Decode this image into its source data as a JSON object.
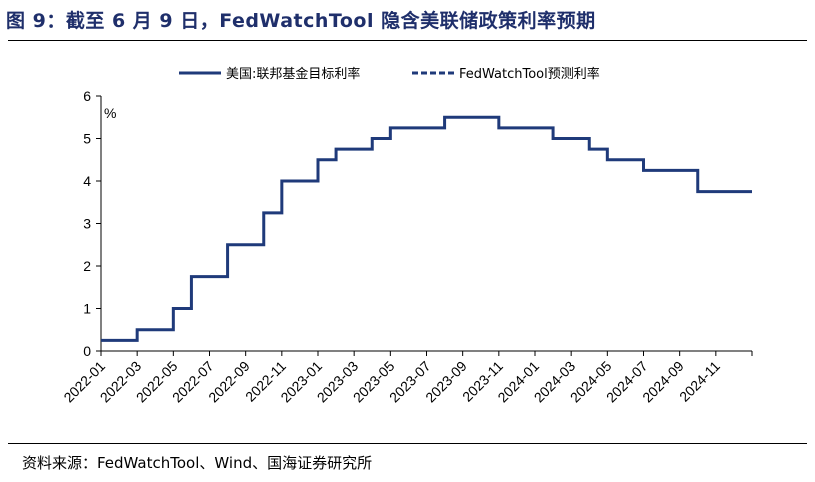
{
  "header": {
    "title": "图 9：截至 6 月 9 日，FedWatchTool 隐含美联储政策利率预期"
  },
  "footer": {
    "source": "资料来源：FedWatchTool、Wind、国海证券研究所"
  },
  "colors": {
    "title": "#1f2f6b",
    "series": "#1f3a7a",
    "axis": "#000000"
  },
  "chart_data": {
    "type": "line",
    "ylabel": "%",
    "ylim": [
      0,
      6
    ],
    "yticks": [
      0,
      1,
      2,
      3,
      4,
      5,
      6
    ],
    "xlim": [
      "2022-01",
      "2024-12"
    ],
    "xticks": [
      "2022-01",
      "2022-03",
      "2022-05",
      "2022-07",
      "2022-09",
      "2022-11",
      "2023-01",
      "2023-03",
      "2023-05",
      "2023-07",
      "2023-09",
      "2023-11",
      "2024-01",
      "2024-03",
      "2024-05",
      "2024-07",
      "2024-09",
      "2024-11"
    ],
    "grid": false,
    "legend_position": "top-center",
    "series": [
      {
        "name": "美国:联邦基金目标利率",
        "style": "solid",
        "step": true,
        "x": [
          "2022-01",
          "2022-03",
          "2022-05",
          "2022-06",
          "2022-08",
          "2022-10",
          "2022-11",
          "2023-01",
          "2023-02",
          "2023-04",
          "2023-05",
          "2023-08",
          "2023-11",
          "2024-02",
          "2024-04",
          "2024-05",
          "2024-07",
          "2024-10"
        ],
        "values": [
          0.25,
          0.5,
          1.0,
          1.75,
          2.5,
          3.25,
          4.0,
          4.5,
          4.75,
          5.0,
          5.25,
          5.5,
          5.25,
          5.0,
          4.75,
          4.5,
          4.25,
          3.75
        ]
      },
      {
        "name": "FedWatchTool预测利率",
        "style": "dashed",
        "x": [],
        "values": []
      }
    ]
  }
}
